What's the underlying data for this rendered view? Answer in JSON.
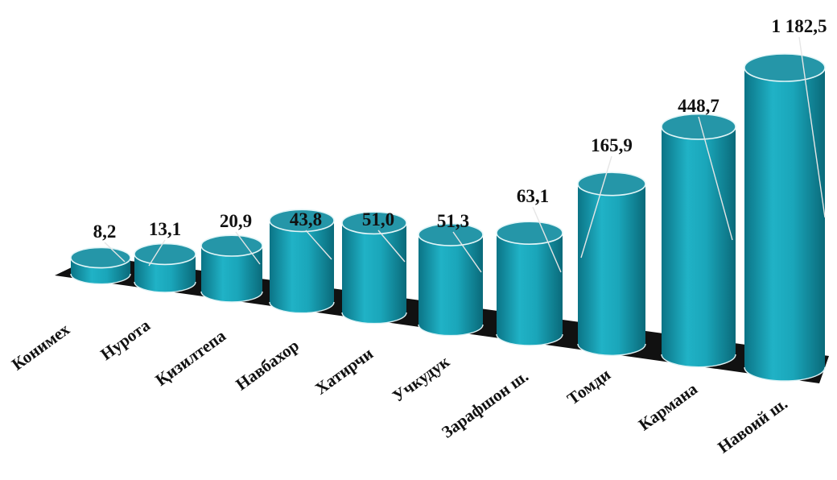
{
  "chart_data": {
    "type": "bar",
    "style": "3d-cylinder",
    "title": "",
    "xlabel": "",
    "ylabel": "",
    "categories": [
      "Конимех",
      "Нурота",
      "Қизилтепа",
      "Навбахор",
      "Хатирчи",
      "Учкудук",
      "Зарафшон ш.",
      "Томди",
      "Кармана",
      "Навоий ш."
    ],
    "values": [
      8.2,
      13.1,
      20.9,
      43.8,
      51.0,
      51.3,
      63.1,
      165.9,
      448.7,
      1182.5
    ],
    "value_labels": [
      "8,2",
      "13,1",
      "20,9",
      "43,8",
      "51,0",
      "51,3",
      "63,1",
      "165,9",
      "448,7",
      "1 182,5"
    ],
    "scale": "non-linear",
    "grid": false,
    "legend": "none"
  },
  "colors": {
    "cylinder_side": "#1aa9bd",
    "cylinder_top": "#2596a8",
    "floor": "#111111",
    "leader_line": "#e6e6e6"
  }
}
